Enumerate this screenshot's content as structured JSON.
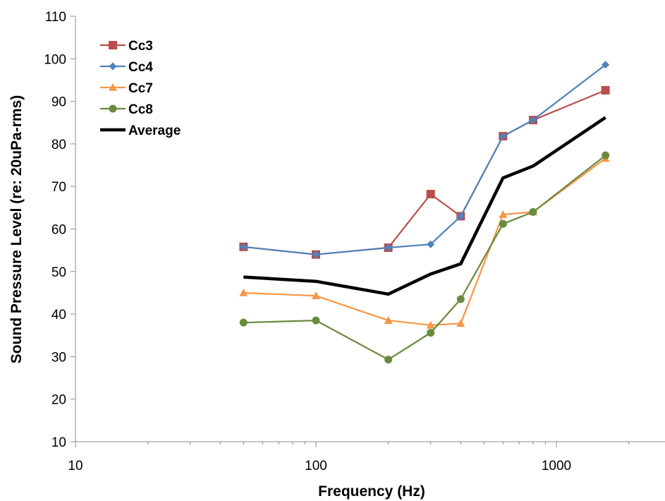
{
  "chart_data": {
    "type": "line",
    "title": "",
    "xlabel": "Frequency (Hz)",
    "ylabel": "Sound Pressure Level (re: 20uPa-rms)",
    "x_scale": "log",
    "xlim": [
      10,
      3000
    ],
    "ylim": [
      10,
      110
    ],
    "x_ticks": [
      10,
      100,
      1000
    ],
    "x_tick_labels": [
      "10",
      "100",
      "1000"
    ],
    "y_ticks": [
      10,
      20,
      30,
      40,
      50,
      60,
      70,
      80,
      90,
      100,
      110
    ],
    "y_tick_labels": [
      "10",
      "20",
      "30",
      "40",
      "50",
      "60",
      "70",
      "80",
      "90",
      "100",
      "110"
    ],
    "grid": false,
    "legend_position": "top-left",
    "series": [
      {
        "name": "Cc3",
        "color": "#B84D4A",
        "marker": "square",
        "x": [
          50,
          100,
          200,
          300,
          400,
          600,
          800,
          1600
        ],
        "y": [
          55.8,
          54.0,
          55.6,
          68.2,
          63.0,
          81.8,
          85.6,
          92.6
        ]
      },
      {
        "name": "Cc4",
        "color": "#4F81BD",
        "marker": "diamond",
        "x": [
          50,
          100,
          200,
          300,
          400,
          600,
          800,
          1600
        ],
        "y": [
          55.8,
          54.0,
          55.6,
          56.4,
          63.0,
          81.8,
          85.6,
          98.6
        ]
      },
      {
        "name": "Cc7",
        "color": "#F79646",
        "marker": "triangle",
        "x": [
          50,
          100,
          200,
          300,
          400,
          600,
          800,
          1600
        ],
        "y": [
          45.0,
          44.3,
          38.5,
          37.4,
          37.8,
          63.4,
          64.0,
          76.6
        ]
      },
      {
        "name": "Cc8",
        "color": "#6A8A3D",
        "marker": "circle",
        "x": [
          50,
          100,
          200,
          300,
          400,
          600,
          800,
          1600
        ],
        "y": [
          38.0,
          38.5,
          29.3,
          35.6,
          43.5,
          61.2,
          64.0,
          77.3
        ]
      },
      {
        "name": "Average",
        "color": "#000000",
        "marker": "none",
        "x": [
          50,
          100,
          200,
          300,
          400,
          600,
          800,
          1600
        ],
        "y": [
          48.7,
          47.7,
          44.7,
          49.4,
          51.8,
          72.0,
          74.8,
          86.2
        ]
      }
    ]
  }
}
